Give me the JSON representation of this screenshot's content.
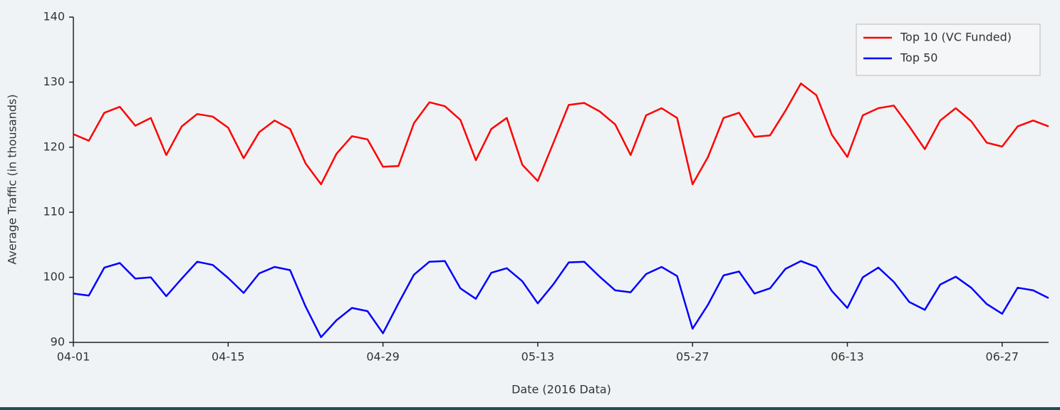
{
  "chart_data": {
    "type": "line",
    "xlabel": "Date (2016 Data)",
    "ylabel": "Average Traffic (in thousands)",
    "categories": [
      "04-01",
      null,
      null,
      null,
      null,
      null,
      null,
      null,
      null,
      null,
      "04-15",
      null,
      null,
      null,
      null,
      null,
      null,
      null,
      null,
      null,
      "04-29",
      null,
      null,
      null,
      null,
      null,
      null,
      null,
      null,
      null,
      "05-13",
      null,
      null,
      null,
      null,
      null,
      null,
      null,
      null,
      null,
      "05-27",
      null,
      null,
      null,
      null,
      null,
      null,
      null,
      null,
      null,
      "06-13",
      null,
      null,
      null,
      null,
      null,
      null,
      null,
      null,
      null,
      "06-27",
      null,
      null,
      null
    ],
    "series": [
      {
        "name": "Top 10 (VC Funded)",
        "color": "#ff0000",
        "values": [
          122,
          121,
          125.3,
          126.2,
          123.3,
          124.5,
          118.8,
          123.2,
          125.1,
          124.7,
          123,
          118.3,
          122.3,
          124.1,
          122.8,
          117.5,
          114.3,
          119,
          121.7,
          121.2,
          117,
          117.1,
          123.7,
          126.9,
          126.3,
          124.2,
          118,
          122.8,
          124.5,
          117.3,
          114.8,
          120.6,
          126.5,
          126.8,
          125.5,
          123.5,
          118.8,
          124.9,
          126,
          124.5,
          114.3,
          118.5,
          124.5,
          125.3,
          121.6,
          121.8,
          125.6,
          129.8,
          128,
          121.9,
          118.5,
          124.9,
          126,
          126.4,
          123.2,
          119.7,
          124.1,
          126,
          124,
          120.7,
          120.1,
          123.2,
          124.1,
          123.2
        ]
      },
      {
        "name": "Top 50",
        "color": "#0000ff",
        "values": [
          97.5,
          97.2,
          101.5,
          102.2,
          99.8,
          100,
          97.1,
          99.8,
          102.4,
          101.9,
          99.9,
          97.6,
          100.6,
          101.6,
          101.1,
          95.5,
          90.8,
          93.4,
          95.3,
          94.8,
          91.4,
          96,
          100.4,
          102.4,
          102.5,
          98.3,
          96.7,
          100.7,
          101.4,
          99.4,
          96,
          98.9,
          102.3,
          102.4,
          100.1,
          98,
          97.7,
          100.5,
          101.6,
          100.2,
          92.1,
          95.8,
          100.3,
          100.9,
          97.5,
          98.3,
          101.3,
          102.5,
          101.6,
          97.9,
          95.3,
          100,
          101.5,
          99.3,
          96.2,
          95,
          98.9,
          100.1,
          98.4,
          95.9,
          94.4,
          98.4,
          98,
          96.8
        ]
      }
    ],
    "ylim": [
      90,
      140
    ],
    "yticks": [
      90,
      100,
      110,
      120,
      130,
      140
    ],
    "grid": false,
    "legend": "upper right"
  }
}
